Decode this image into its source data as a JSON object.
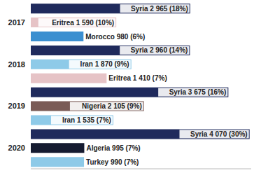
{
  "chart_data": {
    "type": "bar",
    "orientation": "horizontal",
    "categories": [
      null,
      "2017",
      null,
      null,
      "2018",
      null,
      null,
      "2019",
      null,
      null,
      "2020",
      null
    ],
    "values": [
      2965,
      1590,
      980,
      2960,
      1870,
      1410,
      3675,
      2105,
      1535,
      4070,
      995,
      990
    ],
    "value_labels": [
      "Syria 2 965 (18%)",
      "Eritrea 1 590 (10%)",
      "Morocco 980 (6%)",
      "Syria 2 960 (14%)",
      "Iran 1 870 (9%)",
      "Eritrea 1 410 (7%)",
      "Syria 3 675 (16%)",
      "Nigeria 2 105 (9%)",
      "Iran 1 535 (7%)",
      "Syria 4 070 (30%)",
      "Algeria 995 (7%)",
      "Turkey 990 (7%)"
    ],
    "colors": [
      "#1f2a5c",
      "#e6c3c6",
      "#3b8fd0",
      "#1f2a5c",
      "#8ecae8",
      "#e6c3c6",
      "#1f2a5c",
      "#7a5b56",
      "#8ecae8",
      "#1f2a5c",
      "#151b30",
      "#8ecae8"
    ],
    "xlim": [
      0,
      4100
    ],
    "data_labels": true,
    "tick_labels": "y",
    "grid": false
  }
}
